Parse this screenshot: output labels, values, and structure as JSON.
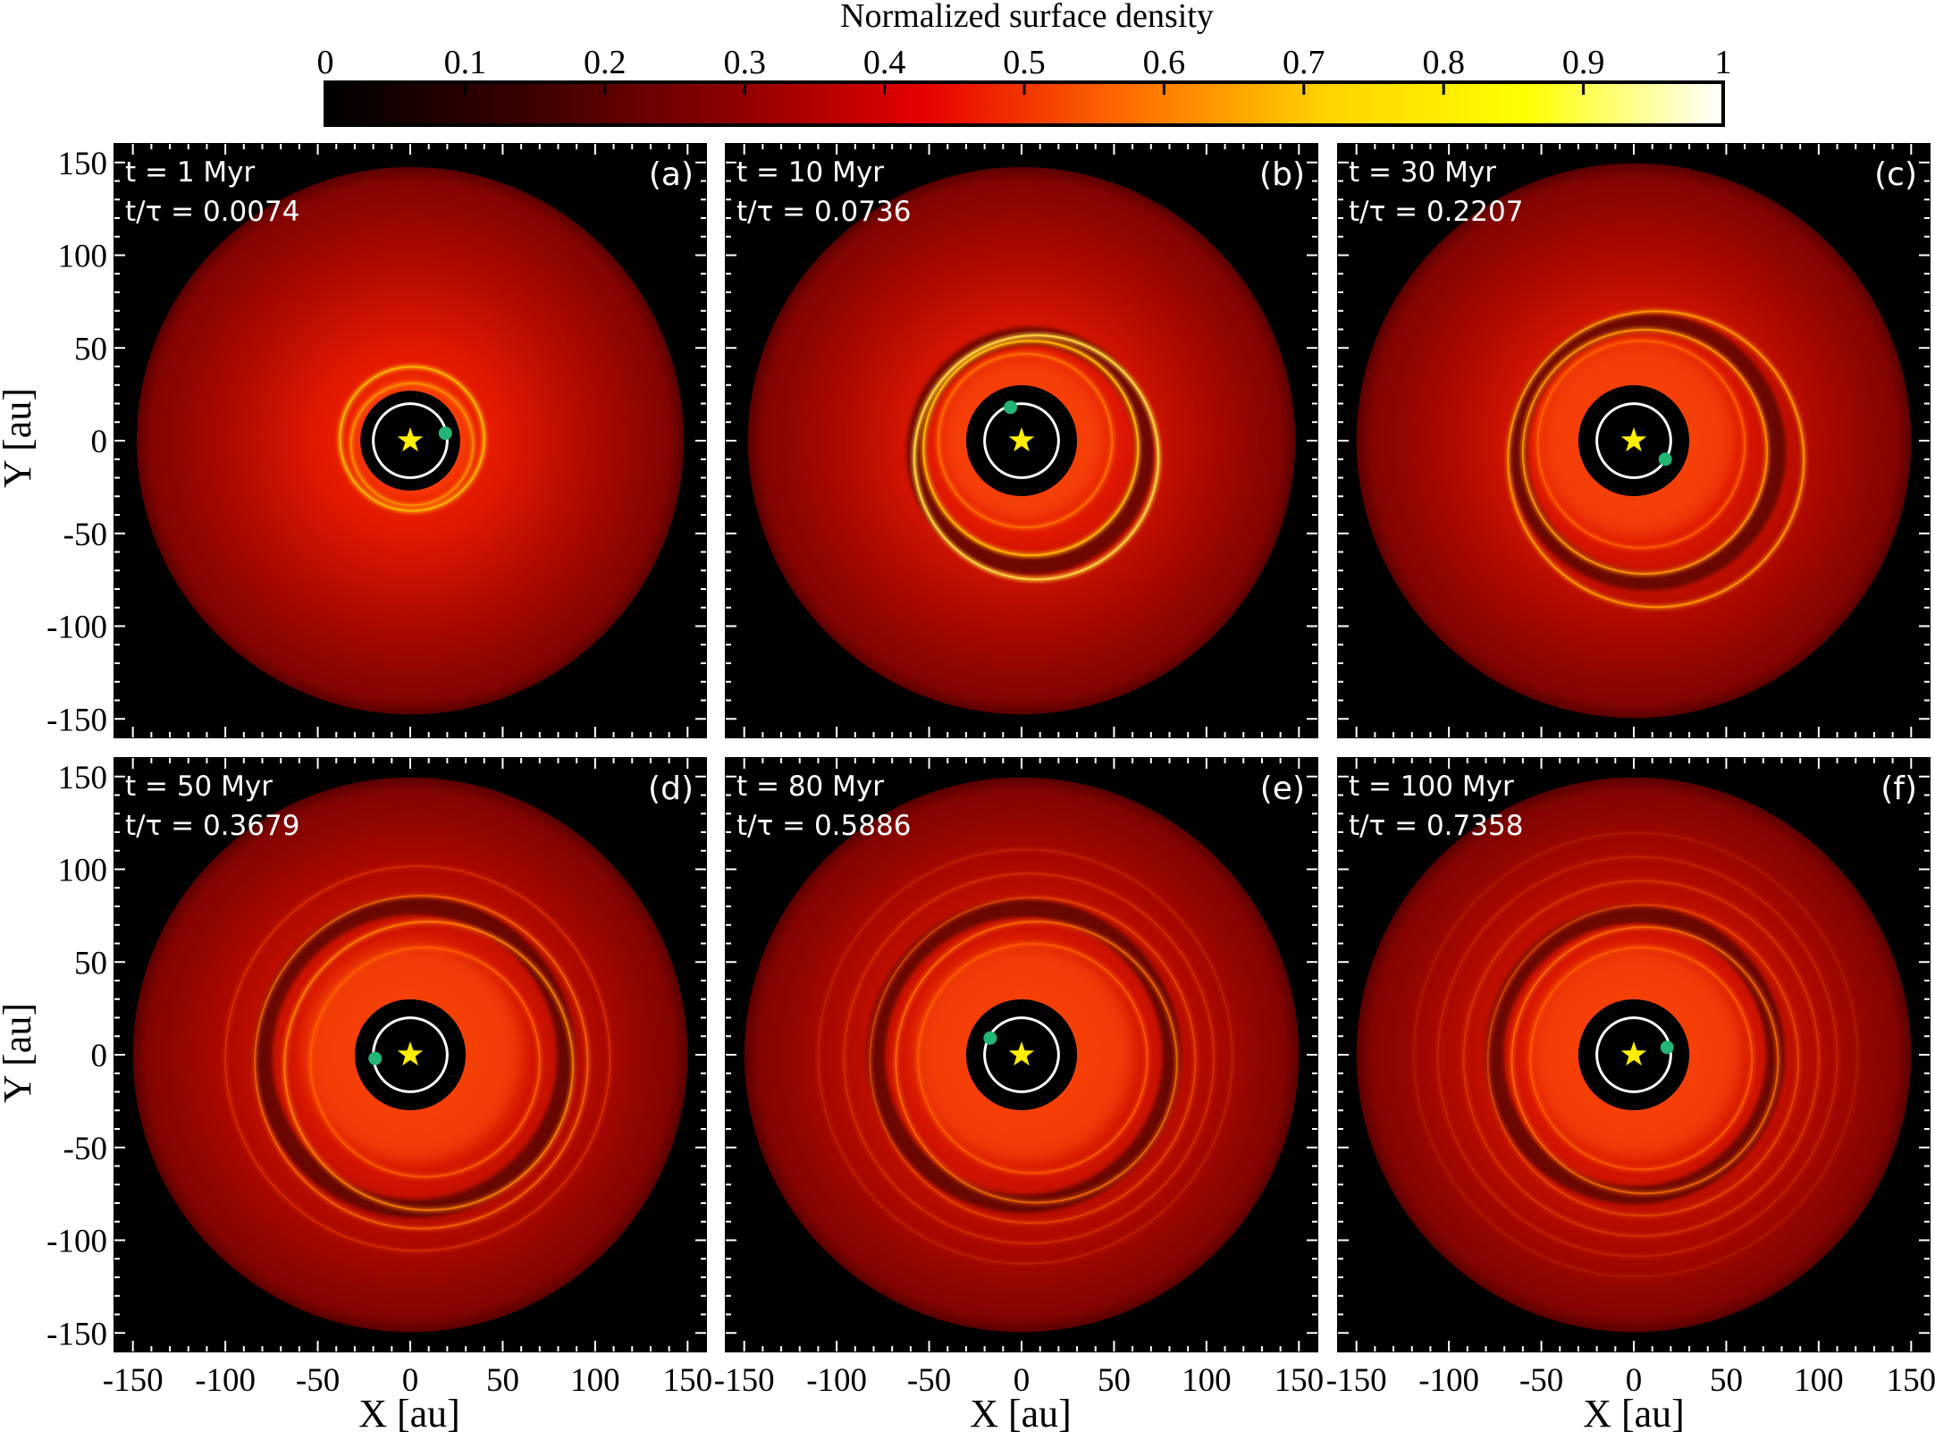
{
  "colorbar": {
    "label": "Normalized surface density",
    "ticks": [
      "0",
      "0.1",
      "0.2",
      "0.3",
      "0.4",
      "0.5",
      "0.6",
      "0.7",
      "0.8",
      "0.9",
      "1"
    ],
    "range": [
      0,
      1
    ],
    "colormap": [
      "#000000",
      "#3a0000",
      "#8a0000",
      "#e60000",
      "#ff6a00",
      "#ffd200",
      "#ffff00",
      "#ffffff"
    ]
  },
  "axes": {
    "xlabel": "X [au]",
    "ylabel": "Y [au]",
    "xlim": [
      -160,
      160
    ],
    "ylim": [
      -160,
      160
    ],
    "x_ticks": [
      "-150",
      "-100",
      "-50",
      "0",
      "50",
      "100",
      "150"
    ],
    "y_ticks": [
      "150",
      "100",
      "50",
      "0",
      "-50",
      "-100",
      "-150"
    ],
    "x_tick_values": [
      -150,
      -100,
      -50,
      0,
      50,
      100,
      150
    ],
    "y_tick_values": [
      150,
      100,
      50,
      0,
      -50,
      -100,
      -150
    ]
  },
  "chart_data": [
    {
      "type": "heatmap",
      "label": "(a)",
      "time": "t = 1 Myr",
      "ratio": "t/τ = 0.0074",
      "planet": [
        19,
        4
      ],
      "disk_outer_radius": 148,
      "cavity_radius": 27,
      "orbit_radius": 20,
      "rings": [
        {
          "r": 33,
          "dx": 1,
          "dy": -2,
          "color": "#ff8a00",
          "intensity": 0.85
        },
        {
          "r": 39,
          "dx": 1,
          "dy": 1,
          "color": "#ffb000",
          "intensity": 0.9
        }
      ]
    },
    {
      "type": "heatmap",
      "label": "(b)",
      "time": "t = 10 Myr",
      "ratio": "t/τ = 0.0736",
      "planet": [
        -6,
        18
      ],
      "disk_outer_radius": 148,
      "cavity_radius": 30,
      "orbit_radius": 20,
      "rings": [
        {
          "r": 47,
          "dx": 2,
          "dy": 0,
          "color": "#ff7000",
          "intensity": 0.75
        },
        {
          "r": 58,
          "dx": 5,
          "dy": -4,
          "color": "#ffb000",
          "intensity": 0.9
        },
        {
          "r": 66,
          "dx": 8,
          "dy": -9,
          "color": "#ffd040",
          "intensity": 0.95
        }
      ]
    },
    {
      "type": "heatmap",
      "label": "(c)",
      "time": "t = 30 Myr",
      "ratio": "t/τ = 0.2207",
      "planet": [
        17,
        -10
      ],
      "disk_outer_radius": 150,
      "cavity_radius": 30,
      "orbit_radius": 20,
      "rings": [
        {
          "r": 56,
          "dx": 4,
          "dy": -2,
          "color": "#ff6000",
          "intensity": 0.7
        },
        {
          "r": 66,
          "dx": 6,
          "dy": -6,
          "color": "#ff9000",
          "intensity": 0.8
        },
        {
          "r": 80,
          "dx": 12,
          "dy": -10,
          "color": "#ff9a00",
          "intensity": 0.75
        }
      ]
    },
    {
      "type": "heatmap",
      "label": "(d)",
      "time": "t = 50 Myr",
      "ratio": "t/τ = 0.3679",
      "planet": [
        -19,
        -2
      ],
      "disk_outer_radius": 150,
      "cavity_radius": 30,
      "orbit_radius": 20,
      "rings": [
        {
          "r": 62,
          "dx": 8,
          "dy": -4,
          "color": "#ff6000",
          "intensity": 0.65
        },
        {
          "r": 78,
          "dx": 10,
          "dy": -6,
          "color": "#ff8000",
          "intensity": 0.7
        },
        {
          "r": 90,
          "dx": 6,
          "dy": -4,
          "color": "#ff7000",
          "intensity": 0.55
        },
        {
          "r": 104,
          "dx": 4,
          "dy": -2,
          "color": "#e83a00",
          "intensity": 0.4
        }
      ]
    },
    {
      "type": "heatmap",
      "label": "(e)",
      "time": "t = 80 Myr",
      "ratio": "t/τ = 0.5886",
      "planet": [
        -17,
        9
      ],
      "disk_outer_radius": 150,
      "cavity_radius": 30,
      "orbit_radius": 20,
      "rings": [
        {
          "r": 62,
          "dx": 6,
          "dy": -2,
          "color": "#ff6000",
          "intensity": 0.6
        },
        {
          "r": 76,
          "dx": 8,
          "dy": -4,
          "color": "#ff7000",
          "intensity": 0.6
        },
        {
          "r": 88,
          "dx": 6,
          "dy": -3,
          "color": "#f05000",
          "intensity": 0.5
        },
        {
          "r": 100,
          "dx": 4,
          "dy": -2,
          "color": "#e03a00",
          "intensity": 0.4
        },
        {
          "r": 112,
          "dx": 2,
          "dy": -1,
          "color": "#d03000",
          "intensity": 0.3
        }
      ]
    },
    {
      "type": "heatmap",
      "label": "(f)",
      "time": "t = 100 Myr",
      "ratio": "t/τ = 0.7358",
      "planet": [
        18,
        4
      ],
      "disk_outer_radius": 150,
      "cavity_radius": 30,
      "orbit_radius": 20,
      "rings": [
        {
          "r": 60,
          "dx": 4,
          "dy": -2,
          "color": "#ff6000",
          "intensity": 0.6
        },
        {
          "r": 72,
          "dx": 6,
          "dy": -3,
          "color": "#ff7000",
          "intensity": 0.6
        },
        {
          "r": 84,
          "dx": 5,
          "dy": -3,
          "color": "#f05000",
          "intensity": 0.5
        },
        {
          "r": 96,
          "dx": 4,
          "dy": -2,
          "color": "#e04000",
          "intensity": 0.45
        },
        {
          "r": 108,
          "dx": 2,
          "dy": -1,
          "color": "#d03000",
          "intensity": 0.35
        },
        {
          "r": 120,
          "dx": 1,
          "dy": 0,
          "color": "#c02a00",
          "intensity": 0.25
        }
      ]
    }
  ]
}
